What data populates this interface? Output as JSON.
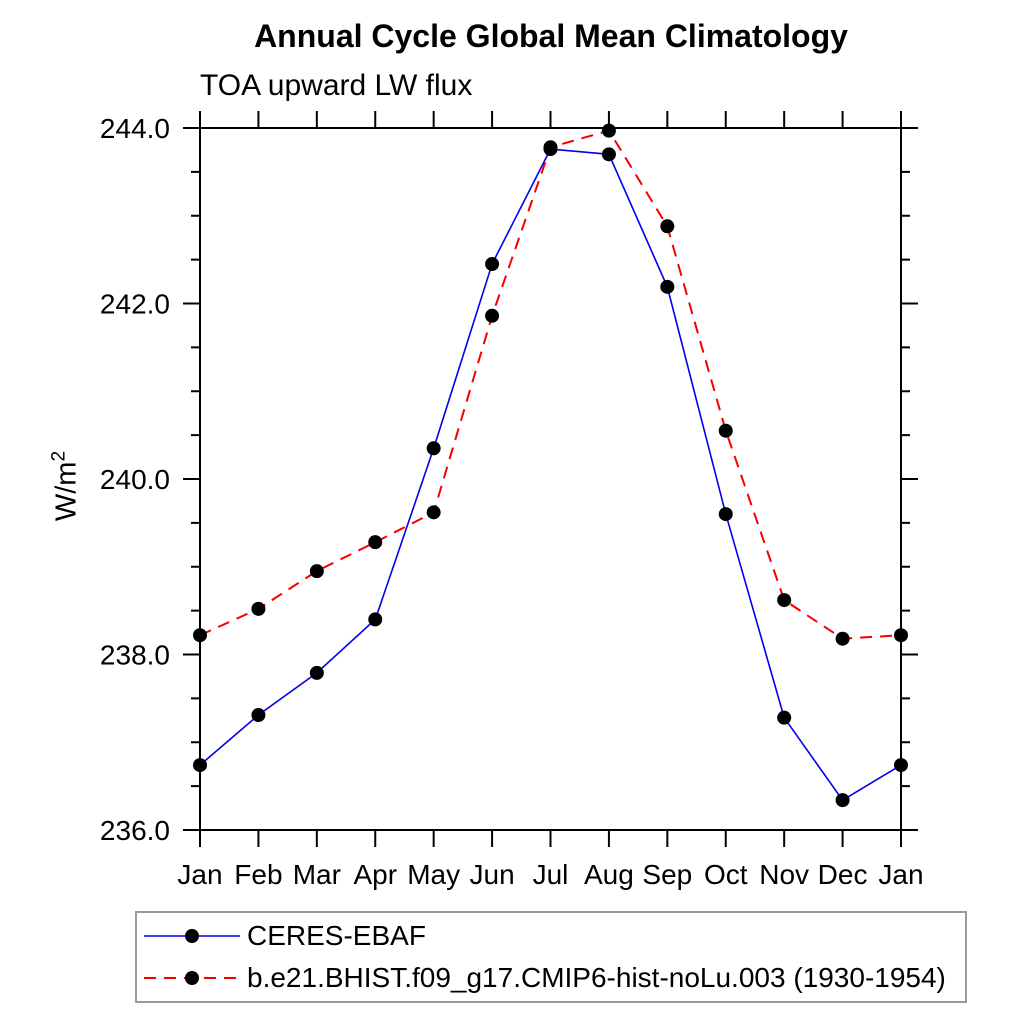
{
  "page": {
    "title": "Annual Cycle Global Mean Climatology",
    "subtitle": "TOA upward LW flux",
    "ylabel_base": "W/m",
    "ylabel_exponent": "2"
  },
  "chart_data": {
    "type": "line",
    "title": "Annual Cycle Global Mean Climatology",
    "subtitle": "TOA upward LW flux",
    "ylabel": "W/m^2",
    "xlabel": "",
    "categories": [
      "Jan",
      "Feb",
      "Mar",
      "Apr",
      "May",
      "Jun",
      "Jul",
      "Aug",
      "Sep",
      "Oct",
      "Nov",
      "Dec",
      "Jan"
    ],
    "series": [
      {
        "name": "CERES-EBAF",
        "color": "#0000ee",
        "line_style": "solid",
        "line_width": 1.6,
        "marker": "filled-circle",
        "marker_color": "#000000",
        "values": [
          236.74,
          237.31,
          237.79,
          238.4,
          240.35,
          242.45,
          243.76,
          243.7,
          242.19,
          239.6,
          237.28,
          236.34,
          236.74
        ]
      },
      {
        "name": "b.e21.BHIST.f09_g17.CMIP6-hist-noLu.003 (1930-1954)",
        "color": "#f40000",
        "line_style": "dashed",
        "line_width": 2,
        "marker": "filled-circle",
        "marker_color": "#000000",
        "values": [
          238.22,
          238.52,
          238.95,
          239.28,
          239.62,
          241.86,
          243.78,
          243.97,
          242.88,
          240.55,
          238.62,
          238.18,
          238.22
        ]
      }
    ],
    "ylim": [
      236.0,
      244.0
    ],
    "yticks_major": [
      "236.0",
      "238.0",
      "240.0",
      "242.0",
      "244.0"
    ],
    "y_major_step": 2.0,
    "y_minor_step": 0.5,
    "grid": false,
    "tick_direction": "out",
    "frame": "box",
    "legend_position": "bottom-left"
  }
}
